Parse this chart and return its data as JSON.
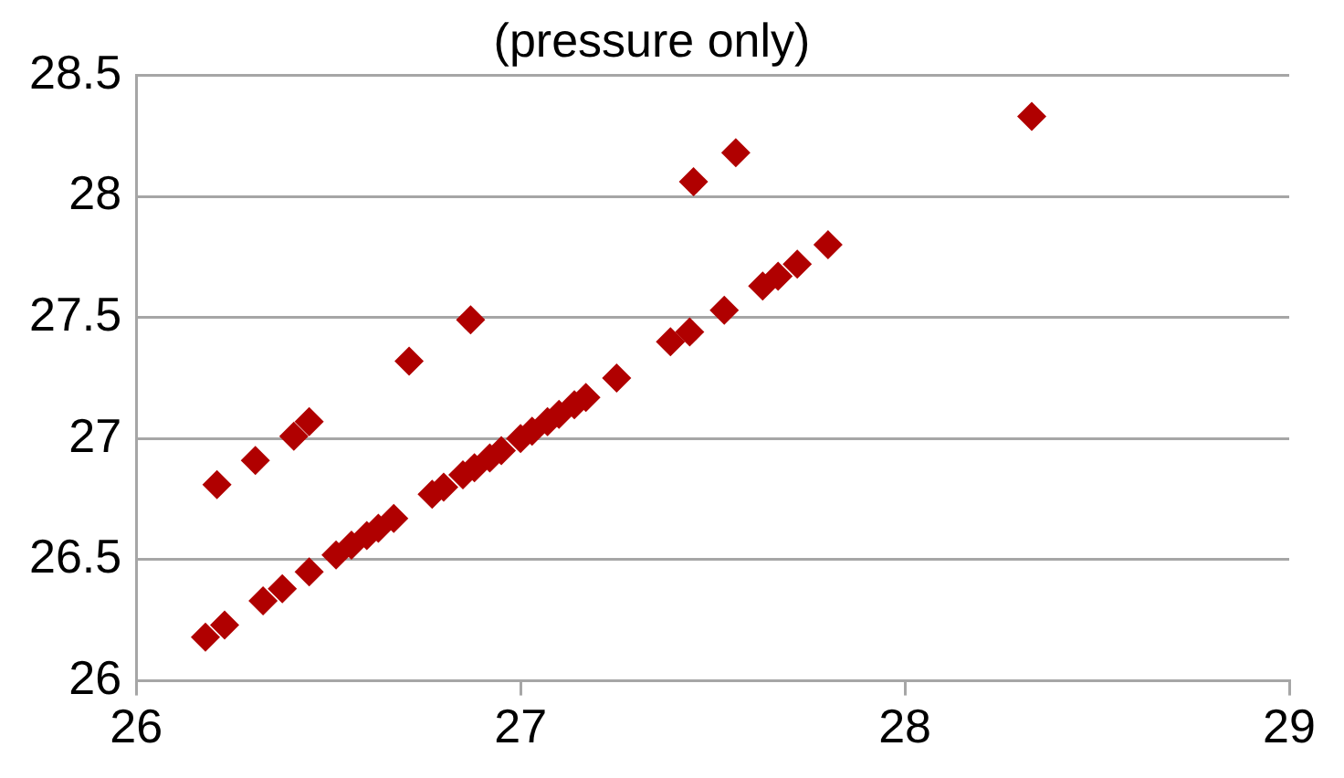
{
  "chart_data": {
    "type": "scatter",
    "title": "(pressure only)",
    "marker": "diamond",
    "grid": "y",
    "xlim": [
      26,
      29
    ],
    "xticks": [
      26,
      27,
      28,
      29
    ],
    "ylim": [
      26,
      28.5
    ],
    "yticks": [
      26,
      26.5,
      27,
      27.5,
      28,
      28.5
    ],
    "series": [
      {
        "color": "#b00000",
        "x": [
          26.21,
          26.31,
          26.41,
          26.45,
          26.71,
          26.87,
          27.45,
          27.56,
          28.33,
          26.18,
          26.23,
          26.33,
          26.38,
          26.45,
          26.52,
          26.56,
          26.6,
          26.63,
          26.67,
          26.77,
          26.8,
          26.85,
          26.88,
          26.92,
          26.95,
          27.0,
          27.03,
          27.07,
          27.1,
          27.14,
          27.17,
          27.25,
          27.39,
          27.44,
          27.53,
          27.63,
          27.67,
          27.72,
          27.8
        ],
        "values": [
          26.81,
          26.91,
          27.01,
          27.07,
          27.32,
          27.49,
          28.06,
          28.18,
          28.33,
          26.18,
          26.23,
          26.33,
          26.38,
          26.45,
          26.52,
          26.56,
          26.6,
          26.63,
          26.67,
          26.77,
          26.8,
          26.85,
          26.88,
          26.92,
          26.95,
          27.0,
          27.03,
          27.07,
          27.1,
          27.14,
          27.17,
          27.25,
          27.4,
          27.44,
          27.53,
          27.63,
          27.67,
          27.72,
          27.8
        ]
      }
    ]
  }
}
